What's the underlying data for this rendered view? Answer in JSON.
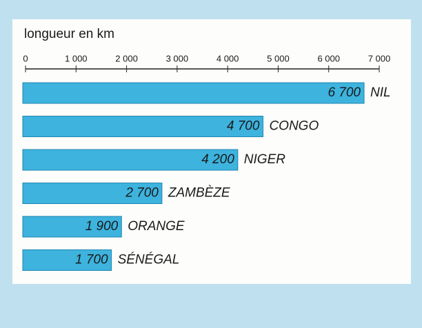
{
  "chart_data": {
    "type": "barh",
    "axis_label": "longueur en km",
    "categories": [
      "NIL",
      "CONGO",
      "NIGER",
      "ZAMBÈZE",
      "ORANGE",
      "SÉNÉGAL"
    ],
    "values": [
      6700,
      4700,
      4200,
      2700,
      1900,
      1700
    ],
    "value_labels": [
      "6 700",
      "4 700",
      "4 200",
      "2 700",
      "1 900",
      "1 700"
    ],
    "color": "#3db3de",
    "xlim": [
      0,
      7000
    ],
    "xticks": [
      0,
      {
        "value": 1000,
        "label": "1 000"
      },
      {
        "value": 2000,
        "label": "2 000"
      },
      {
        "value": 3000,
        "label": "3 000"
      },
      {
        "value": 4000,
        "label": "4 000"
      },
      {
        "value": 5000,
        "label": "5 000"
      },
      {
        "value": 6000,
        "label": "6 000"
      },
      {
        "value": 7000,
        "label": "7 000"
      }
    ]
  }
}
